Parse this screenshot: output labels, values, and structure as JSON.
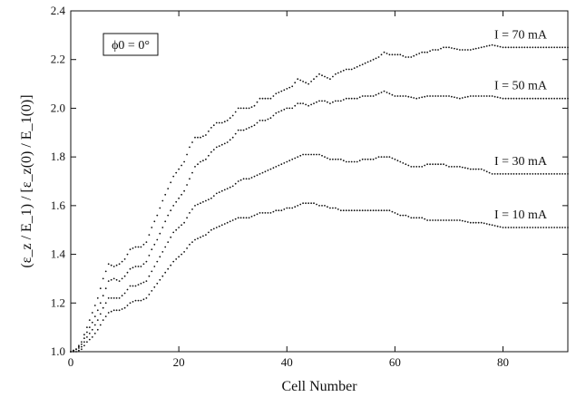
{
  "chart_data": {
    "type": "scatter",
    "xlabel": "Cell Number",
    "ylabel": "(ε_z / E_1) / [ε_z(0) / E_1(0)]",
    "xlim": [
      0,
      92
    ],
    "ylim": [
      1.0,
      2.4
    ],
    "x_ticks": [
      "0",
      "20",
      "40",
      "60",
      "80"
    ],
    "y_ticks": [
      "1.0",
      "1.2",
      "1.4",
      "1.6",
      "1.8",
      "2.0",
      "2.2",
      "2.4"
    ],
    "x_tick_values": [
      0,
      20,
      40,
      60,
      80
    ],
    "y_tick_values": [
      1.0,
      1.2,
      1.4,
      1.6,
      1.8,
      2.0,
      2.2,
      2.4
    ],
    "annotation": "ϕ0 = 0°",
    "grid": false,
    "series": [
      {
        "name": "I = 70 mA",
        "points": [
          [
            0,
            1.0
          ],
          [
            1,
            1.01
          ],
          [
            2,
            1.04
          ],
          [
            3,
            1.1
          ],
          [
            4,
            1.16
          ],
          [
            5,
            1.22
          ],
          [
            6,
            1.3
          ],
          [
            7,
            1.36
          ],
          [
            8,
            1.35
          ],
          [
            9,
            1.36
          ],
          [
            10,
            1.38
          ],
          [
            11,
            1.42
          ],
          [
            12,
            1.43
          ],
          [
            13,
            1.43
          ],
          [
            14,
            1.45
          ],
          [
            15,
            1.51
          ],
          [
            16,
            1.56
          ],
          [
            17,
            1.62
          ],
          [
            18,
            1.67
          ],
          [
            19,
            1.72
          ],
          [
            20,
            1.75
          ],
          [
            21,
            1.78
          ],
          [
            22,
            1.84
          ],
          [
            23,
            1.88
          ],
          [
            24,
            1.88
          ],
          [
            25,
            1.89
          ],
          [
            26,
            1.92
          ],
          [
            27,
            1.94
          ],
          [
            28,
            1.94
          ],
          [
            29,
            1.95
          ],
          [
            30,
            1.97
          ],
          [
            31,
            2.0
          ],
          [
            32,
            2.0
          ],
          [
            33,
            2.0
          ],
          [
            34,
            2.01
          ],
          [
            35,
            2.04
          ],
          [
            36,
            2.04
          ],
          [
            37,
            2.04
          ],
          [
            38,
            2.06
          ],
          [
            39,
            2.07
          ],
          [
            40,
            2.08
          ],
          [
            41,
            2.09
          ],
          [
            42,
            2.12
          ],
          [
            43,
            2.11
          ],
          [
            44,
            2.1
          ],
          [
            45,
            2.12
          ],
          [
            46,
            2.14
          ],
          [
            47,
            2.13
          ],
          [
            48,
            2.12
          ],
          [
            49,
            2.14
          ],
          [
            50,
            2.15
          ],
          [
            51,
            2.16
          ],
          [
            52,
            2.16
          ],
          [
            53,
            2.17
          ],
          [
            54,
            2.18
          ],
          [
            55,
            2.19
          ],
          [
            56,
            2.2
          ],
          [
            57,
            2.21
          ],
          [
            58,
            2.23
          ],
          [
            59,
            2.22
          ],
          [
            60,
            2.22
          ],
          [
            61,
            2.22
          ],
          [
            62,
            2.21
          ],
          [
            63,
            2.21
          ],
          [
            64,
            2.22
          ],
          [
            65,
            2.23
          ],
          [
            66,
            2.23
          ],
          [
            67,
            2.24
          ],
          [
            68,
            2.24
          ],
          [
            69,
            2.25
          ],
          [
            70,
            2.25
          ],
          [
            72,
            2.24
          ],
          [
            74,
            2.24
          ],
          [
            76,
            2.25
          ],
          [
            78,
            2.26
          ],
          [
            80,
            2.25
          ],
          [
            82,
            2.25
          ],
          [
            84,
            2.25
          ],
          [
            86,
            2.25
          ],
          [
            88,
            2.25
          ],
          [
            90,
            2.25
          ],
          [
            92,
            2.25
          ]
        ]
      },
      {
        "name": "I = 50 mA",
        "points": [
          [
            0,
            1.0
          ],
          [
            1,
            1.01
          ],
          [
            2,
            1.03
          ],
          [
            3,
            1.08
          ],
          [
            4,
            1.12
          ],
          [
            5,
            1.17
          ],
          [
            6,
            1.23
          ],
          [
            7,
            1.29
          ],
          [
            8,
            1.3
          ],
          [
            9,
            1.29
          ],
          [
            10,
            1.31
          ],
          [
            11,
            1.34
          ],
          [
            12,
            1.35
          ],
          [
            13,
            1.35
          ],
          [
            14,
            1.37
          ],
          [
            15,
            1.42
          ],
          [
            16,
            1.46
          ],
          [
            17,
            1.51
          ],
          [
            18,
            1.56
          ],
          [
            19,
            1.6
          ],
          [
            20,
            1.63
          ],
          [
            21,
            1.66
          ],
          [
            22,
            1.71
          ],
          [
            23,
            1.76
          ],
          [
            24,
            1.78
          ],
          [
            25,
            1.79
          ],
          [
            26,
            1.82
          ],
          [
            27,
            1.84
          ],
          [
            28,
            1.85
          ],
          [
            29,
            1.86
          ],
          [
            30,
            1.88
          ],
          [
            31,
            1.91
          ],
          [
            32,
            1.91
          ],
          [
            33,
            1.92
          ],
          [
            34,
            1.93
          ],
          [
            35,
            1.95
          ],
          [
            36,
            1.95
          ],
          [
            37,
            1.96
          ],
          [
            38,
            1.98
          ],
          [
            39,
            1.99
          ],
          [
            40,
            2.0
          ],
          [
            41,
            2.0
          ],
          [
            42,
            2.02
          ],
          [
            43,
            2.02
          ],
          [
            44,
            2.01
          ],
          [
            45,
            2.02
          ],
          [
            46,
            2.03
          ],
          [
            47,
            2.03
          ],
          [
            48,
            2.02
          ],
          [
            49,
            2.03
          ],
          [
            50,
            2.03
          ],
          [
            51,
            2.04
          ],
          [
            52,
            2.04
          ],
          [
            53,
            2.04
          ],
          [
            54,
            2.05
          ],
          [
            55,
            2.05
          ],
          [
            56,
            2.05
          ],
          [
            57,
            2.06
          ],
          [
            58,
            2.07
          ],
          [
            59,
            2.06
          ],
          [
            60,
            2.05
          ],
          [
            62,
            2.05
          ],
          [
            64,
            2.04
          ],
          [
            66,
            2.05
          ],
          [
            68,
            2.05
          ],
          [
            70,
            2.05
          ],
          [
            72,
            2.04
          ],
          [
            74,
            2.05
          ],
          [
            76,
            2.05
          ],
          [
            78,
            2.05
          ],
          [
            80,
            2.04
          ],
          [
            82,
            2.04
          ],
          [
            84,
            2.04
          ],
          [
            86,
            2.04
          ],
          [
            88,
            2.04
          ],
          [
            90,
            2.04
          ],
          [
            92,
            2.04
          ]
        ]
      },
      {
        "name": "I = 30 mA",
        "points": [
          [
            0,
            1.0
          ],
          [
            1,
            1.01
          ],
          [
            2,
            1.02
          ],
          [
            3,
            1.06
          ],
          [
            4,
            1.09
          ],
          [
            5,
            1.13
          ],
          [
            6,
            1.18
          ],
          [
            7,
            1.22
          ],
          [
            8,
            1.22
          ],
          [
            9,
            1.22
          ],
          [
            10,
            1.24
          ],
          [
            11,
            1.27
          ],
          [
            12,
            1.27
          ],
          [
            13,
            1.28
          ],
          [
            14,
            1.29
          ],
          [
            15,
            1.33
          ],
          [
            16,
            1.37
          ],
          [
            17,
            1.41
          ],
          [
            18,
            1.45
          ],
          [
            19,
            1.49
          ],
          [
            20,
            1.51
          ],
          [
            21,
            1.53
          ],
          [
            22,
            1.57
          ],
          [
            23,
            1.6
          ],
          [
            24,
            1.61
          ],
          [
            25,
            1.62
          ],
          [
            26,
            1.63
          ],
          [
            27,
            1.65
          ],
          [
            28,
            1.66
          ],
          [
            29,
            1.67
          ],
          [
            30,
            1.68
          ],
          [
            31,
            1.7
          ],
          [
            32,
            1.71
          ],
          [
            33,
            1.71
          ],
          [
            34,
            1.72
          ],
          [
            35,
            1.73
          ],
          [
            36,
            1.74
          ],
          [
            37,
            1.75
          ],
          [
            38,
            1.76
          ],
          [
            39,
            1.77
          ],
          [
            40,
            1.78
          ],
          [
            41,
            1.79
          ],
          [
            42,
            1.8
          ],
          [
            43,
            1.81
          ],
          [
            44,
            1.81
          ],
          [
            45,
            1.81
          ],
          [
            46,
            1.81
          ],
          [
            47,
            1.8
          ],
          [
            48,
            1.79
          ],
          [
            49,
            1.79
          ],
          [
            50,
            1.79
          ],
          [
            51,
            1.78
          ],
          [
            52,
            1.78
          ],
          [
            53,
            1.78
          ],
          [
            54,
            1.79
          ],
          [
            55,
            1.79
          ],
          [
            56,
            1.79
          ],
          [
            57,
            1.8
          ],
          [
            58,
            1.8
          ],
          [
            59,
            1.8
          ],
          [
            60,
            1.79
          ],
          [
            61,
            1.78
          ],
          [
            62,
            1.77
          ],
          [
            63,
            1.76
          ],
          [
            64,
            1.76
          ],
          [
            65,
            1.76
          ],
          [
            66,
            1.77
          ],
          [
            67,
            1.77
          ],
          [
            68,
            1.77
          ],
          [
            69,
            1.77
          ],
          [
            70,
            1.76
          ],
          [
            72,
            1.76
          ],
          [
            74,
            1.75
          ],
          [
            76,
            1.75
          ],
          [
            78,
            1.73
          ],
          [
            80,
            1.73
          ],
          [
            82,
            1.73
          ],
          [
            84,
            1.73
          ],
          [
            86,
            1.73
          ],
          [
            88,
            1.73
          ],
          [
            90,
            1.73
          ],
          [
            92,
            1.73
          ]
        ]
      },
      {
        "name": "I = 10 mA",
        "points": [
          [
            0,
            1.0
          ],
          [
            1,
            1.0
          ],
          [
            2,
            1.01
          ],
          [
            3,
            1.04
          ],
          [
            4,
            1.06
          ],
          [
            5,
            1.09
          ],
          [
            6,
            1.13
          ],
          [
            7,
            1.16
          ],
          [
            8,
            1.17
          ],
          [
            9,
            1.17
          ],
          [
            10,
            1.18
          ],
          [
            11,
            1.2
          ],
          [
            12,
            1.21
          ],
          [
            13,
            1.21
          ],
          [
            14,
            1.22
          ],
          [
            15,
            1.25
          ],
          [
            16,
            1.28
          ],
          [
            17,
            1.31
          ],
          [
            18,
            1.34
          ],
          [
            19,
            1.37
          ],
          [
            20,
            1.39
          ],
          [
            21,
            1.41
          ],
          [
            22,
            1.44
          ],
          [
            23,
            1.46
          ],
          [
            24,
            1.47
          ],
          [
            25,
            1.48
          ],
          [
            26,
            1.5
          ],
          [
            27,
            1.51
          ],
          [
            28,
            1.52
          ],
          [
            29,
            1.53
          ],
          [
            30,
            1.54
          ],
          [
            31,
            1.55
          ],
          [
            32,
            1.55
          ],
          [
            33,
            1.55
          ],
          [
            34,
            1.56
          ],
          [
            35,
            1.57
          ],
          [
            36,
            1.57
          ],
          [
            37,
            1.57
          ],
          [
            38,
            1.58
          ],
          [
            39,
            1.58
          ],
          [
            40,
            1.59
          ],
          [
            41,
            1.59
          ],
          [
            42,
            1.6
          ],
          [
            43,
            1.61
          ],
          [
            44,
            1.61
          ],
          [
            45,
            1.61
          ],
          [
            46,
            1.6
          ],
          [
            47,
            1.6
          ],
          [
            48,
            1.59
          ],
          [
            49,
            1.59
          ],
          [
            50,
            1.58
          ],
          [
            51,
            1.58
          ],
          [
            52,
            1.58
          ],
          [
            53,
            1.58
          ],
          [
            54,
            1.58
          ],
          [
            55,
            1.58
          ],
          [
            56,
            1.58
          ],
          [
            57,
            1.58
          ],
          [
            58,
            1.58
          ],
          [
            59,
            1.58
          ],
          [
            60,
            1.57
          ],
          [
            61,
            1.56
          ],
          [
            62,
            1.56
          ],
          [
            63,
            1.55
          ],
          [
            64,
            1.55
          ],
          [
            65,
            1.55
          ],
          [
            66,
            1.54
          ],
          [
            67,
            1.54
          ],
          [
            68,
            1.54
          ],
          [
            69,
            1.54
          ],
          [
            70,
            1.54
          ],
          [
            72,
            1.54
          ],
          [
            74,
            1.53
          ],
          [
            76,
            1.53
          ],
          [
            78,
            1.52
          ],
          [
            80,
            1.51
          ],
          [
            82,
            1.51
          ],
          [
            84,
            1.51
          ],
          [
            86,
            1.51
          ],
          [
            88,
            1.51
          ],
          [
            90,
            1.51
          ],
          [
            92,
            1.51
          ]
        ]
      }
    ]
  }
}
